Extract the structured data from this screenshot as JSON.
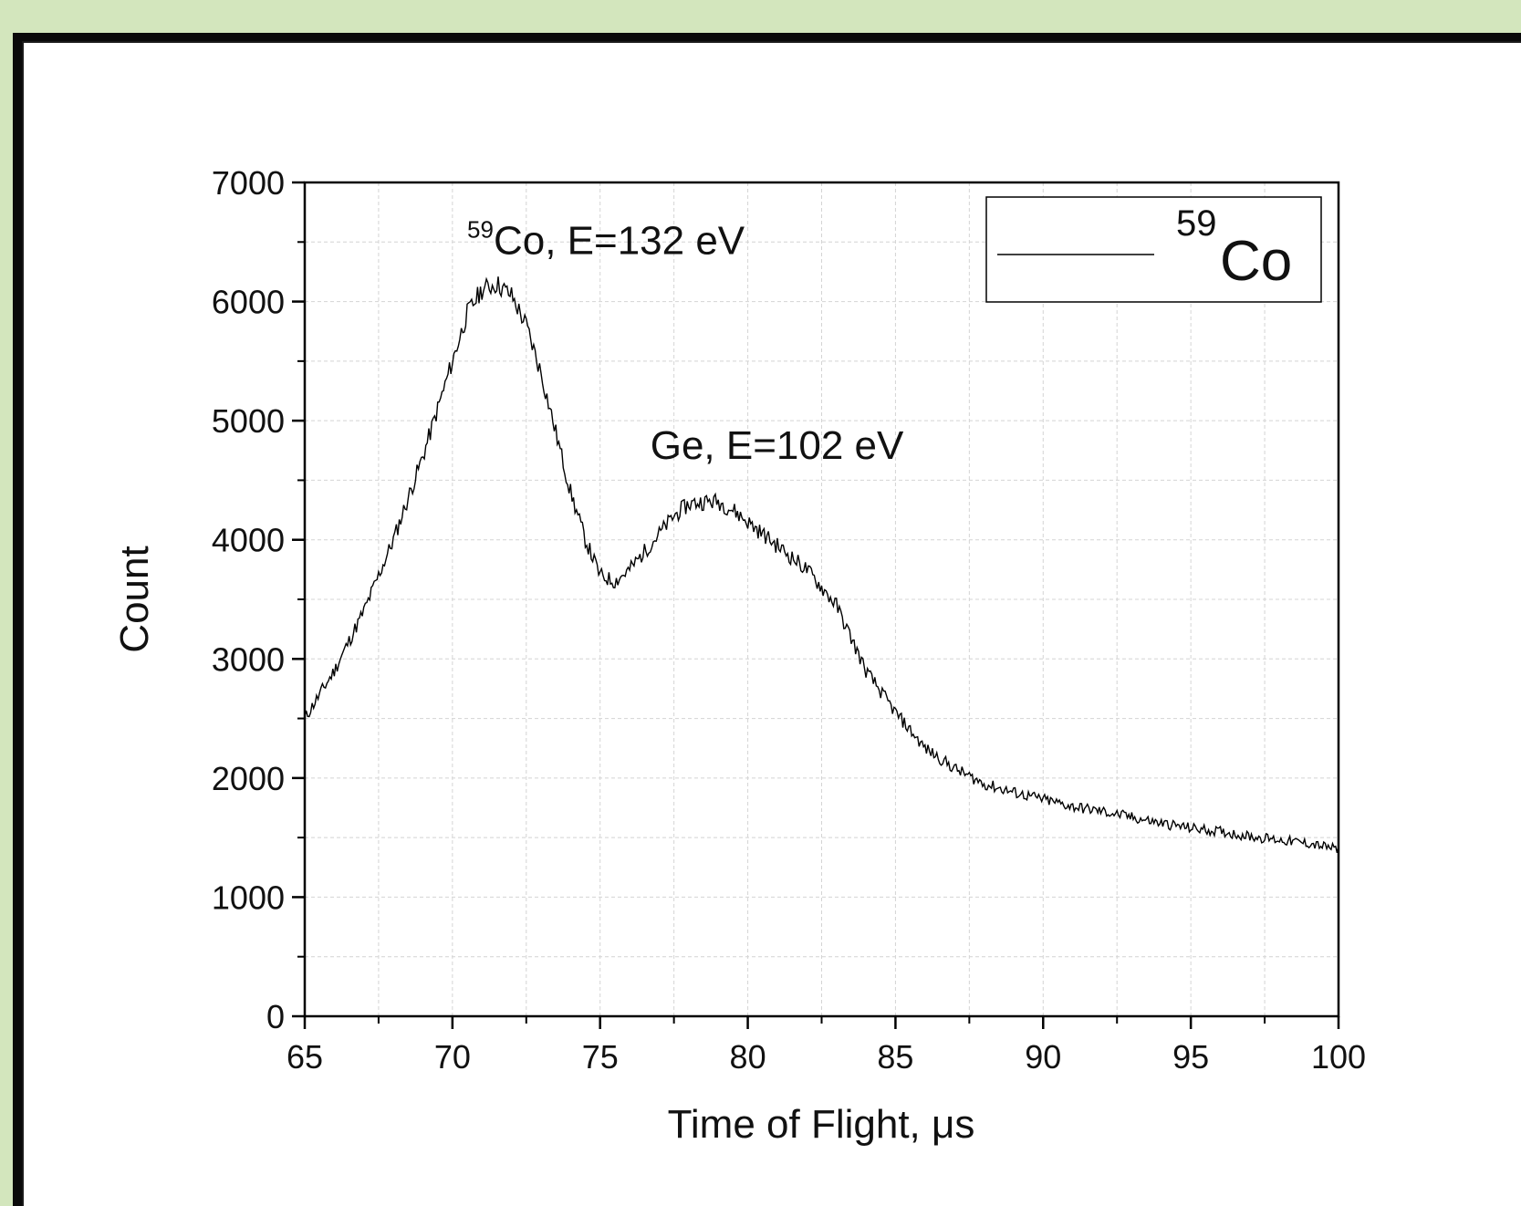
{
  "chart_data": {
    "type": "line",
    "xlabel": "Time of Flight, μs",
    "ylabel": "Count",
    "xlim": [
      65,
      100
    ],
    "ylim": [
      0,
      7000
    ],
    "x_ticks": [
      65,
      70,
      75,
      80,
      85,
      90,
      95,
      100
    ],
    "y_ticks": [
      0,
      1000,
      2000,
      3000,
      4000,
      5000,
      6000,
      7000
    ],
    "grid": true,
    "legend_position": "top-right",
    "series": [
      {
        "name": "59Co",
        "name_sup": "59",
        "name_base": "Co",
        "x": [
          65,
          66,
          67,
          68,
          69,
          70,
          70.5,
          71,
          71.5,
          72,
          72.5,
          73,
          73.5,
          74,
          74.5,
          75,
          75.5,
          76,
          76.5,
          77,
          77.5,
          78,
          78.5,
          79,
          79.5,
          80,
          81,
          82,
          83,
          84,
          85,
          86,
          87,
          88,
          89,
          90,
          91,
          92,
          93,
          94,
          95,
          96,
          97,
          98,
          99,
          100
        ],
        "y": [
          2500,
          2900,
          3400,
          4000,
          4700,
          5500,
          5900,
          6100,
          6150,
          6050,
          5800,
          5400,
          4900,
          4400,
          4000,
          3700,
          3650,
          3750,
          3900,
          4050,
          4200,
          4300,
          4320,
          4320,
          4250,
          4150,
          3950,
          3750,
          3450,
          2900,
          2550,
          2250,
          2080,
          1950,
          1880,
          1820,
          1760,
          1720,
          1670,
          1620,
          1580,
          1550,
          1510,
          1480,
          1450,
          1400
        ]
      }
    ],
    "annotations": [
      {
        "sup": "59",
        "text": "Co, E=132 eV",
        "x": 70.5,
        "y": 6400
      },
      {
        "sup": "",
        "text": "Ge, E=102 eV",
        "x": 76.7,
        "y": 4680
      }
    ]
  }
}
